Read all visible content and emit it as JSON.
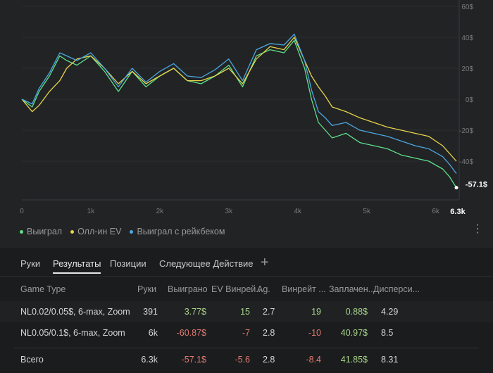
{
  "chart": {
    "y_ticks": [
      "60$",
      "40$",
      "20$",
      "0$",
      "-20$",
      "-40$"
    ],
    "x_ticks": [
      "0",
      "1k",
      "2k",
      "3k",
      "4k",
      "5k",
      "6k"
    ],
    "x_end_label": "6.3k",
    "end_value_label": "-57.1$",
    "colors": {
      "won": "#5ee08a",
      "allin_ev": "#e6d44a",
      "rakeback": "#4aa8e0"
    }
  },
  "chart_data": {
    "type": "line",
    "xlim": [
      0,
      6300
    ],
    "ylim": [
      -60,
      60
    ],
    "series": [
      {
        "name": "Выиграл",
        "x": [
          0,
          150,
          250,
          400,
          550,
          650,
          800,
          1000,
          1200,
          1400,
          1600,
          1800,
          2000,
          2200,
          2400,
          2600,
          2800,
          3000,
          3200,
          3400,
          3600,
          3800,
          3950,
          4100,
          4200,
          4300,
          4400,
          4500,
          4700,
          4900,
          5100,
          5300,
          5500,
          5700,
          5900,
          6100,
          6200,
          6300
        ],
        "values": [
          0,
          -5,
          5,
          15,
          28,
          25,
          22,
          28,
          18,
          5,
          18,
          8,
          15,
          20,
          12,
          10,
          15,
          22,
          8,
          28,
          32,
          30,
          38,
          20,
          0,
          -15,
          -20,
          -25,
          -22,
          -28,
          -30,
          -32,
          -36,
          -38,
          -40,
          -45,
          -50,
          -57.1
        ]
      },
      {
        "name": "Олл-ин EV",
        "x": [
          0,
          150,
          250,
          400,
          550,
          650,
          800,
          1000,
          1200,
          1400,
          1600,
          1800,
          2000,
          2200,
          2400,
          2600,
          2800,
          3000,
          3200,
          3400,
          3600,
          3800,
          3950,
          4100,
          4200,
          4300,
          4400,
          4500,
          4700,
          4900,
          5100,
          5300,
          5500,
          5700,
          5900,
          6100,
          6200,
          6300
        ],
        "values": [
          0,
          -8,
          -4,
          5,
          12,
          20,
          26,
          28,
          20,
          10,
          18,
          10,
          15,
          20,
          12,
          12,
          15,
          20,
          10,
          26,
          34,
          32,
          40,
          25,
          15,
          8,
          2,
          -5,
          -8,
          -12,
          -15,
          -18,
          -20,
          -22,
          -24,
          -30,
          -35,
          -40
        ]
      },
      {
        "name": "Выиграл с рейкбеком",
        "x": [
          0,
          150,
          250,
          400,
          550,
          650,
          800,
          1000,
          1200,
          1400,
          1600,
          1800,
          2000,
          2200,
          2400,
          2600,
          2800,
          3000,
          3200,
          3400,
          3600,
          3800,
          3950,
          4100,
          4200,
          4300,
          4400,
          4500,
          4700,
          4900,
          5100,
          5300,
          5500,
          5700,
          5900,
          6100,
          6200,
          6300
        ],
        "values": [
          0,
          -3,
          7,
          17,
          30,
          28,
          25,
          30,
          20,
          8,
          20,
          11,
          18,
          23,
          15,
          14,
          19,
          26,
          12,
          32,
          36,
          35,
          42,
          25,
          6,
          -8,
          -12,
          -17,
          -15,
          -20,
          -22,
          -24,
          -27,
          -30,
          -32,
          -37,
          -42,
          -48
        ]
      }
    ]
  },
  "legend": [
    {
      "label": "Выиграл",
      "color": "#5ee08a"
    },
    {
      "label": "Олл-ин EV",
      "color": "#e6d44a"
    },
    {
      "label": "Выиграл с рейкбеком",
      "color": "#4aa8e0"
    }
  ],
  "tabs": [
    {
      "label": "Руки"
    },
    {
      "label": "Результаты"
    },
    {
      "label": "Позиции"
    },
    {
      "label": "Следующее Действие"
    }
  ],
  "table": {
    "headers": [
      "Game Type",
      "Руки",
      "Выиграно",
      "EV Винрей...",
      "Ag.",
      "Винрейт ...",
      "Заплачен...",
      "Дисперси..."
    ],
    "rows": [
      [
        "NL0.02/0.05$, 6-max, Zoom",
        "391",
        "3.77$",
        "15",
        "2.7",
        "19",
        "0.88$",
        "4.29"
      ],
      [
        "NL0.05/0.1$, 6-max, Zoom",
        "6k",
        "-60.87$",
        "-7",
        "2.8",
        "-10",
        "40.97$",
        "8.5"
      ]
    ],
    "total": [
      "Всего",
      "6.3k",
      "-57.1$",
      "-5.6",
      "2.8",
      "-8.4",
      "41.85$",
      "8.31"
    ]
  }
}
